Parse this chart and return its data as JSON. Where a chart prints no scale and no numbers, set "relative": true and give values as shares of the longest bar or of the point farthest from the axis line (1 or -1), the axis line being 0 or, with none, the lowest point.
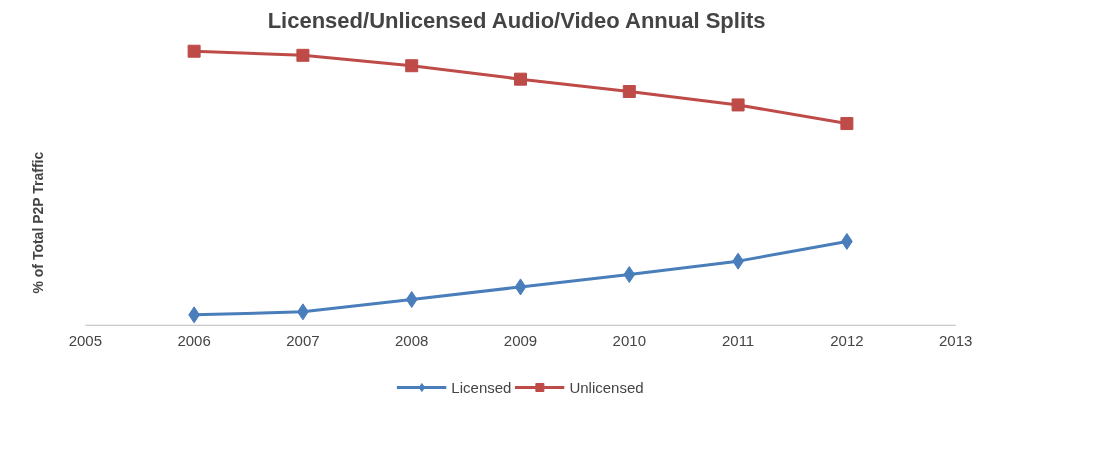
{
  "chart_data": {
    "type": "line",
    "title": "Licensed/Unlicensed  Audio/Video Annual Splits",
    "ylabel": "% of Total P2P Traffic",
    "relative": true,
    "x": [
      2006,
      2007,
      2008,
      2009,
      2010,
      2011,
      2012
    ],
    "xlim": [
      2005,
      2013
    ],
    "xticks": [
      2005,
      2006,
      2007,
      2008,
      2009,
      2010,
      2011,
      2012,
      2013
    ],
    "grid": false,
    "legend": "bottom",
    "series": [
      {
        "name": "Licensed",
        "color": "#4a7ebb",
        "marker": "diamond",
        "values": [
          0.038,
          0.049,
          0.094,
          0.14,
          0.185,
          0.234,
          0.306
        ]
      },
      {
        "name": "Unlicensed",
        "color": "#be4b48",
        "marker": "square",
        "values": [
          1,
          0.985,
          0.947,
          0.898,
          0.853,
          0.804,
          0.736
        ]
      }
    ]
  }
}
